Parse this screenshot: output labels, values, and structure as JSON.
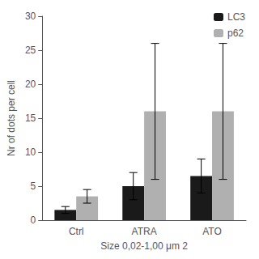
{
  "chart_data": {
    "type": "bar",
    "categories": [
      "Ctrl",
      "ATRA",
      "ATO"
    ],
    "series": [
      {
        "name": "LC3",
        "color": "#1a1a1a",
        "values": [
          1.5,
          5.0,
          6.5
        ],
        "errors": [
          0.5,
          2.0,
          2.5
        ]
      },
      {
        "name": "p62",
        "color": "#b0b0b0",
        "values": [
          3.5,
          16.0,
          16.0
        ],
        "errors": [
          1.0,
          10.0,
          10.0
        ]
      }
    ],
    "xlabel": "Size 0,02-1,00 μm 2",
    "ylabel": "Nr of dots per cell",
    "ylim": [
      0,
      30
    ],
    "yticks": [
      0,
      5,
      10,
      15,
      20,
      25,
      30
    ],
    "legend": "upper right",
    "grid": false
  }
}
